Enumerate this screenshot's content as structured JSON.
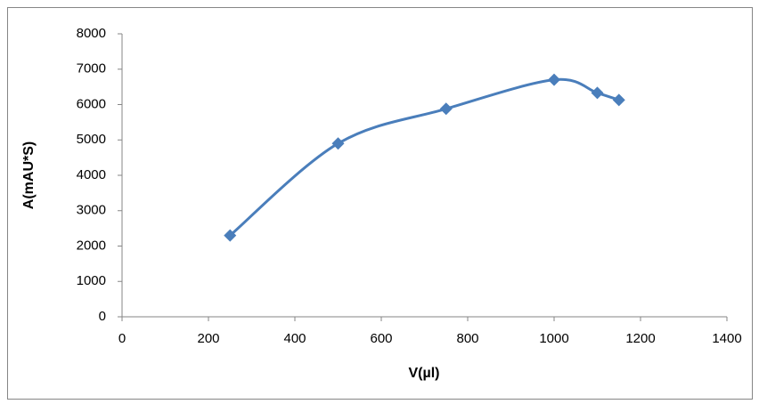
{
  "chart_data": {
    "type": "scatter-smooth",
    "x_label": "V(µl)",
    "y_label": "A(mAU*S)",
    "x": [
      250,
      500,
      750,
      1000,
      1100,
      1150
    ],
    "series": [
      {
        "color": "#4a7ebb",
        "values": [
          2300,
          4900,
          5880,
          6700,
          6330,
          6130
        ]
      }
    ],
    "xlim": [
      0,
      1400
    ],
    "xticks": [
      0,
      200,
      400,
      600,
      800,
      1000,
      1200,
      1400
    ],
    "ylim": [
      0,
      8000
    ],
    "yticks": [
      0,
      1000,
      2000,
      3000,
      4000,
      5000,
      6000,
      7000,
      8000
    ],
    "grid": false
  }
}
